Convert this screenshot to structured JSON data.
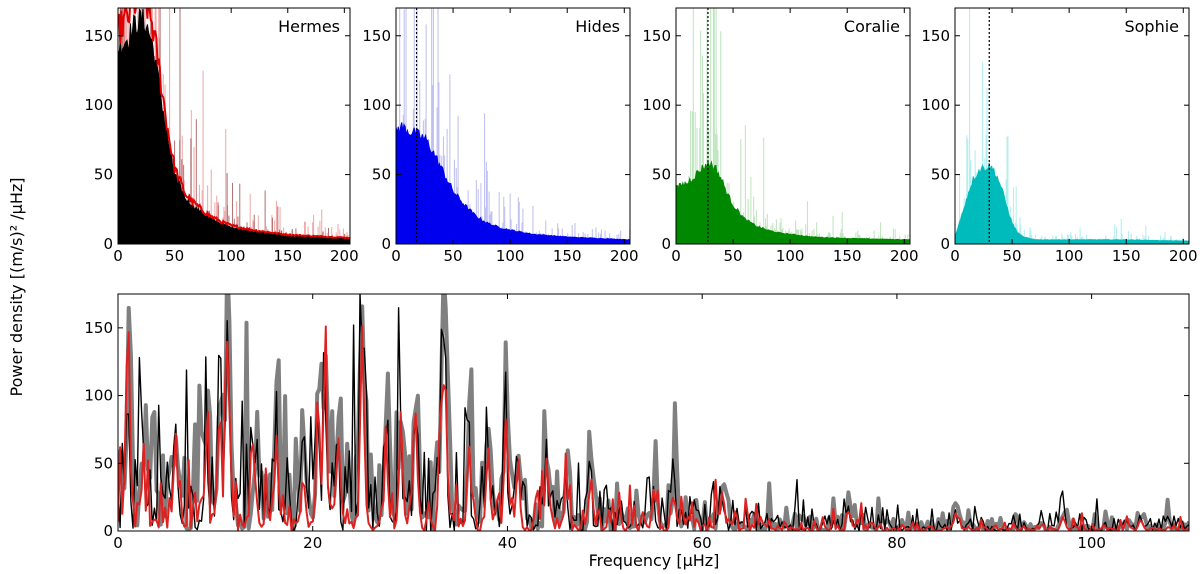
{
  "figure": {
    "ylabel": "Power density [(m/s)² /μHz]",
    "xlabel": "Frequency [μHz]"
  },
  "chart_data": [
    {
      "type": "area",
      "title": "Hermes",
      "xlim": [
        0,
        205
      ],
      "ylim": [
        0,
        170
      ],
      "xticks": [
        0,
        50,
        100,
        150,
        200
      ],
      "yticks": [
        0,
        50,
        100,
        150
      ],
      "colors": {
        "raw_light": "#f0a0a0",
        "raw_dark": "#7a1010",
        "smooth": "#e00000",
        "fill": "#000000"
      },
      "envelope": {
        "x": [
          0,
          5,
          10,
          15,
          20,
          25,
          30,
          35,
          40,
          45,
          50,
          60,
          70,
          80,
          90,
          100,
          120,
          150,
          205
        ],
        "y": [
          140,
          145,
          150,
          158,
          162,
          158,
          145,
          122,
          95,
          70,
          50,
          32,
          25,
          19,
          15,
          12,
          9,
          6,
          4
        ]
      },
      "smooth_scale": 1.1,
      "marker_x": null
    },
    {
      "type": "area",
      "title": "Hides",
      "xlim": [
        0,
        205
      ],
      "ylim": [
        0,
        170
      ],
      "xticks": [
        0,
        50,
        100,
        150,
        200
      ],
      "yticks": [
        0,
        50,
        100,
        150
      ],
      "colors": {
        "raw_light": "#b8b8f0",
        "fill": "#0000ee"
      },
      "envelope": {
        "x": [
          0,
          5,
          10,
          15,
          20,
          25,
          30,
          35,
          40,
          45,
          50,
          60,
          70,
          80,
          90,
          100,
          120,
          150,
          205
        ],
        "y": [
          82,
          84,
          82,
          80,
          78,
          76,
          70,
          62,
          54,
          46,
          38,
          28,
          20,
          15,
          12,
          10,
          7,
          5,
          3
        ]
      },
      "marker_x": 18
    },
    {
      "type": "area",
      "title": "Coralie",
      "xlim": [
        0,
        205
      ],
      "ylim": [
        0,
        170
      ],
      "xticks": [
        0,
        50,
        100,
        150,
        200
      ],
      "yticks": [
        0,
        50,
        100,
        150
      ],
      "colors": {
        "raw_light": "#b8e0b8",
        "fill": "#008800"
      },
      "envelope": {
        "x": [
          0,
          5,
          10,
          15,
          20,
          25,
          30,
          35,
          40,
          45,
          50,
          60,
          70,
          80,
          90,
          100,
          120,
          150,
          205
        ],
        "y": [
          40,
          42,
          44,
          48,
          52,
          56,
          58,
          54,
          46,
          36,
          28,
          18,
          13,
          10,
          8,
          7,
          5,
          4,
          3
        ]
      },
      "marker_x": 28
    },
    {
      "type": "area",
      "title": "Sophie",
      "xlim": [
        0,
        205
      ],
      "ylim": [
        0,
        170
      ],
      "xticks": [
        0,
        50,
        100,
        150,
        200
      ],
      "yticks": [
        0,
        50,
        100,
        150
      ],
      "colors": {
        "raw_light": "#a8ecec",
        "fill": "#00bbbb"
      },
      "envelope": {
        "x": [
          0,
          5,
          10,
          15,
          20,
          25,
          30,
          35,
          40,
          45,
          50,
          55,
          60,
          70,
          80,
          100,
          150,
          205
        ],
        "y": [
          5,
          18,
          32,
          45,
          52,
          55,
          56,
          52,
          42,
          28,
          15,
          8,
          5,
          3,
          3,
          3,
          3,
          2
        ]
      },
      "marker_x": 30
    },
    {
      "type": "line",
      "xlim": [
        0,
        110
      ],
      "ylim": [
        0,
        175
      ],
      "xticks": [
        0,
        20,
        40,
        60,
        80,
        100
      ],
      "yticks": [
        0,
        50,
        100,
        150
      ],
      "colors": {
        "gray": "#808080",
        "black": "#000000",
        "red": "#dd2222"
      },
      "peaks": [
        {
          "x": 1.0,
          "y": 138
        },
        {
          "x": 2.5,
          "y": 55
        },
        {
          "x": 5.8,
          "y": 72
        },
        {
          "x": 9.0,
          "y": 78
        },
        {
          "x": 10.4,
          "y": 120
        },
        {
          "x": 11.2,
          "y": 165
        },
        {
          "x": 14.0,
          "y": 65
        },
        {
          "x": 16.2,
          "y": 92
        },
        {
          "x": 19.0,
          "y": 55
        },
        {
          "x": 20.5,
          "y": 110
        },
        {
          "x": 21.2,
          "y": 132
        },
        {
          "x": 22.5,
          "y": 80
        },
        {
          "x": 25.0,
          "y": 172
        },
        {
          "x": 27.5,
          "y": 75
        },
        {
          "x": 29.0,
          "y": 95
        },
        {
          "x": 30.5,
          "y": 102
        },
        {
          "x": 33.2,
          "y": 150
        },
        {
          "x": 33.6,
          "y": 118
        },
        {
          "x": 36.0,
          "y": 85
        },
        {
          "x": 38.0,
          "y": 70
        },
        {
          "x": 39.8,
          "y": 95
        },
        {
          "x": 41.0,
          "y": 60
        },
        {
          "x": 44.0,
          "y": 55
        },
        {
          "x": 46.0,
          "y": 40
        },
        {
          "x": 48.5,
          "y": 50
        },
        {
          "x": 55.0,
          "y": 30
        },
        {
          "x": 57.0,
          "y": 35
        },
        {
          "x": 62.0,
          "y": 25
        },
        {
          "x": 75.0,
          "y": 20
        },
        {
          "x": 86.0,
          "y": 20
        },
        {
          "x": 97.0,
          "y": 15
        },
        {
          "x": 105.0,
          "y": 12
        }
      ]
    }
  ]
}
